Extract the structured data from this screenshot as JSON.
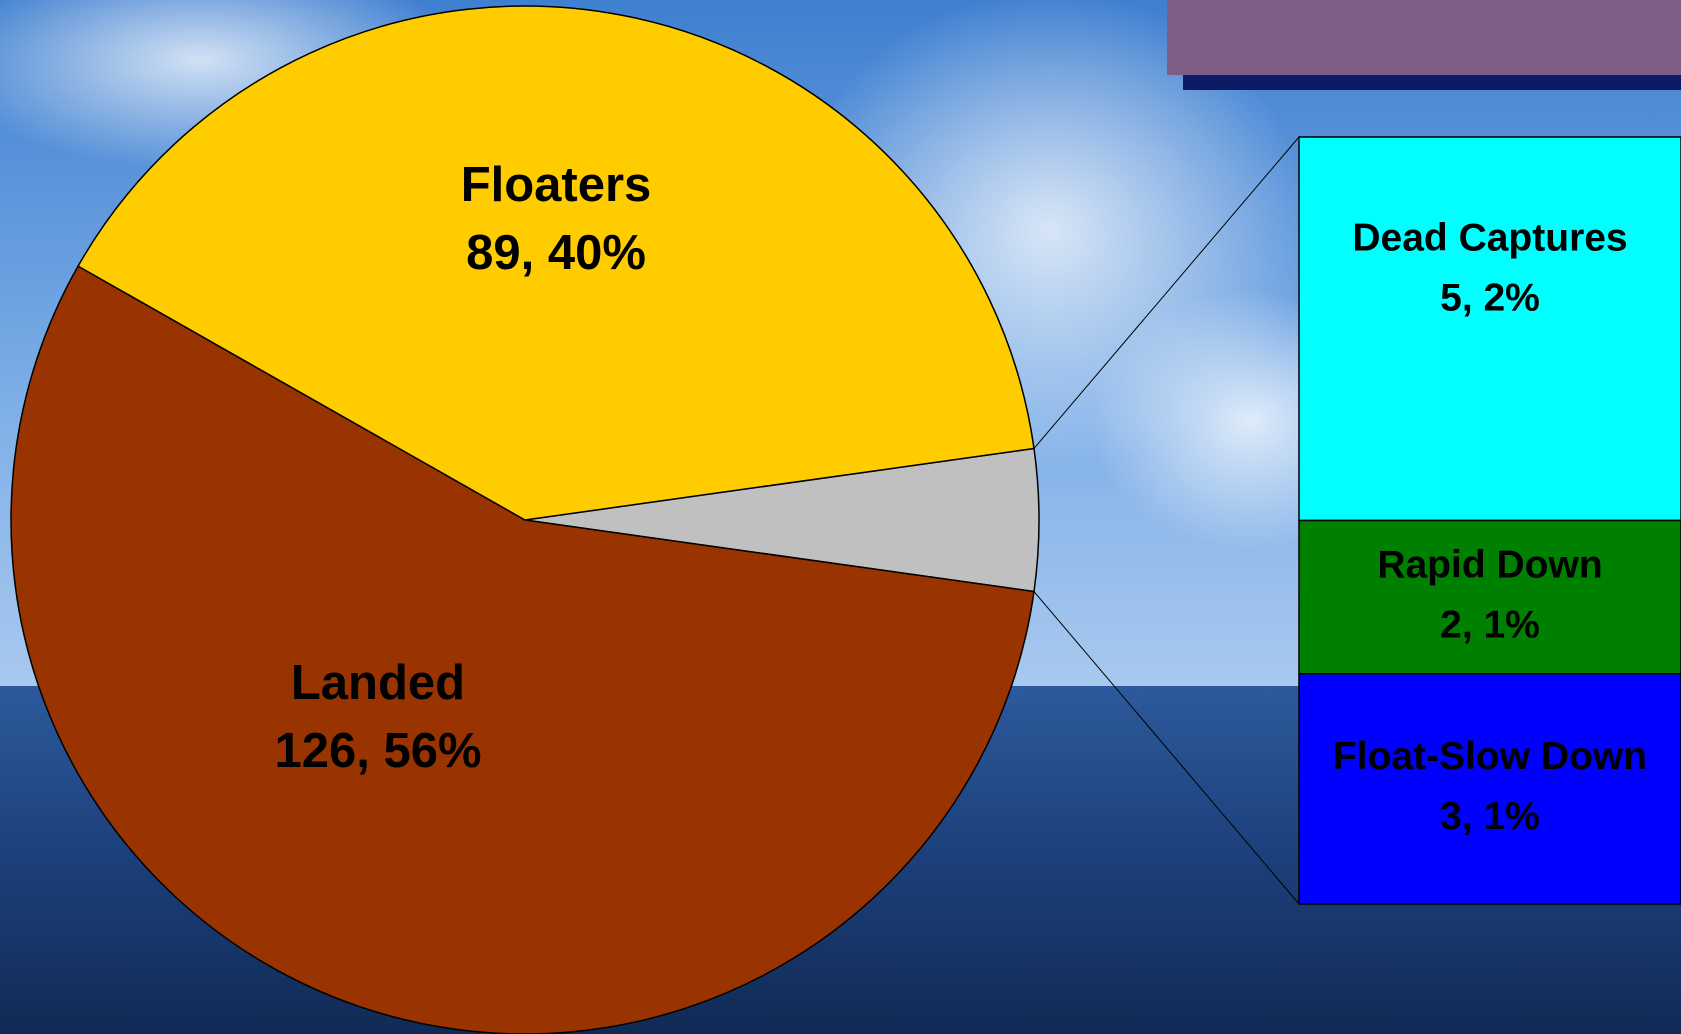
{
  "chart_data": {
    "type": "pie-of-bar",
    "categories": [
      "Floaters",
      "Landed"
    ],
    "values": [
      89,
      126
    ],
    "value_labels": [
      "89, 40%",
      "126, 56%"
    ],
    "colors": [
      "#ffcc00",
      "#993300"
    ],
    "other_color": "#c0c0c0",
    "breakdown": {
      "categories": [
        "Dead Captures",
        "Rapid Down",
        "Float-Slow Down"
      ],
      "values": [
        5,
        2,
        3
      ],
      "value_labels": [
        "5, 2%",
        "2, 1%",
        "3, 1%"
      ],
      "colors": [
        "#00ffff",
        "#008000",
        "#0000ff"
      ]
    }
  }
}
